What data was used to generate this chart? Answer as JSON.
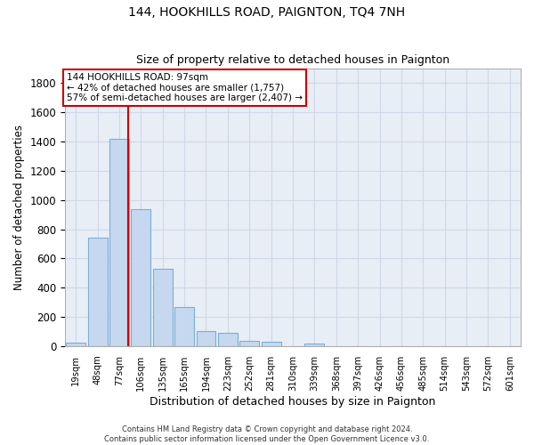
{
  "title1": "144, HOOKHILLS ROAD, PAIGNTON, TQ4 7NH",
  "title2": "Size of property relative to detached houses in Paignton",
  "xlabel": "Distribution of detached houses by size in Paignton",
  "ylabel": "Number of detached properties",
  "bin_labels": [
    "19sqm",
    "48sqm",
    "77sqm",
    "106sqm",
    "135sqm",
    "165sqm",
    "194sqm",
    "223sqm",
    "252sqm",
    "281sqm",
    "310sqm",
    "339sqm",
    "368sqm",
    "397sqm",
    "426sqm",
    "456sqm",
    "485sqm",
    "514sqm",
    "543sqm",
    "572sqm",
    "601sqm"
  ],
  "bar_values": [
    22,
    745,
    1420,
    935,
    530,
    265,
    105,
    90,
    37,
    27,
    0,
    15,
    0,
    0,
    0,
    0,
    0,
    0,
    0,
    0,
    0
  ],
  "bar_color": "#c5d8ef",
  "bar_edge_color": "#7aafd4",
  "grid_color": "#d0d8e8",
  "vline_color": "#cc0000",
  "annotation_line1": "144 HOOKHILLS ROAD: 97sqm",
  "annotation_line2": "← 42% of detached houses are smaller (1,757)",
  "annotation_line3": "57% of semi-detached houses are larger (2,407) →",
  "annotation_box_color": "#cc0000",
  "ylim": [
    0,
    1900
  ],
  "yticks": [
    0,
    200,
    400,
    600,
    800,
    1000,
    1200,
    1400,
    1600,
    1800
  ],
  "footnote": "Contains HM Land Registry data © Crown copyright and database right 2024.\nContains public sector information licensed under the Open Government Licence v3.0.",
  "background_color": "#ffffff",
  "plot_bg_color": "#e8eef5"
}
